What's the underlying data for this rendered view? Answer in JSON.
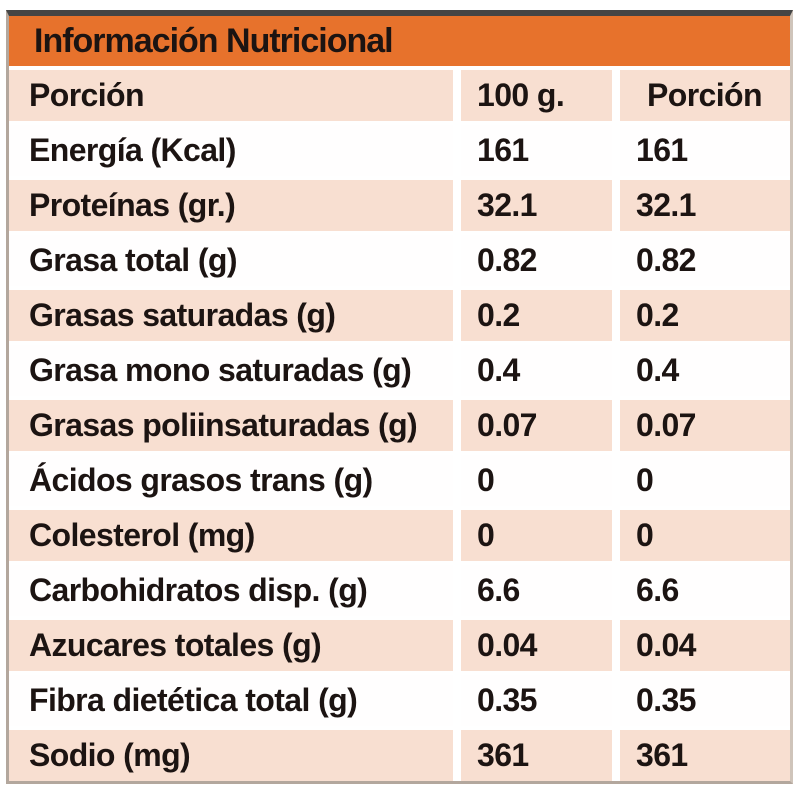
{
  "title": "Información Nutricional",
  "columns": [
    "Porción",
    "100 g.",
    "Porción"
  ],
  "rows": [
    {
      "nutrient": "Energía (Kcal)",
      "per_100g": "161",
      "per_portion": "161"
    },
    {
      "nutrient": "Proteínas (gr.)",
      "per_100g": "32.1",
      "per_portion": "32.1"
    },
    {
      "nutrient": "Grasa total (g)",
      "per_100g": "0.82",
      "per_portion": "0.82"
    },
    {
      "nutrient": "Grasas saturadas (g)",
      "per_100g": "0.2",
      "per_portion": "0.2"
    },
    {
      "nutrient": "Grasa mono saturadas (g)",
      "per_100g": "0.4",
      "per_portion": "0.4"
    },
    {
      "nutrient": "Grasas poliinsaturadas (g)",
      "per_100g": "0.07",
      "per_portion": "0.07"
    },
    {
      "nutrient": "Ácidos grasos trans (g)",
      "per_100g": "0",
      "per_portion": "0"
    },
    {
      "nutrient": "Colesterol (mg)",
      "per_100g": "0",
      "per_portion": "0"
    },
    {
      "nutrient": "Carbohidratos disp. (g)",
      "per_100g": "6.6",
      "per_portion": "6.6"
    },
    {
      "nutrient": "Azucares totales (g)",
      "per_100g": "0.04",
      "per_portion": "0.04"
    },
    {
      "nutrient": "Fibra dietética total (g)",
      "per_100g": "0.35",
      "per_portion": "0.35"
    },
    {
      "nutrient": "Sodio (mg)",
      "per_100g": "361",
      "per_portion": "361"
    }
  ],
  "colors": {
    "header_orange": "#e7722c",
    "row_peach": "#f8dfd1",
    "row_white": "#fffefe",
    "text": "#1c1412",
    "border_dark": "#454545",
    "border_light": "#b3a79d"
  }
}
